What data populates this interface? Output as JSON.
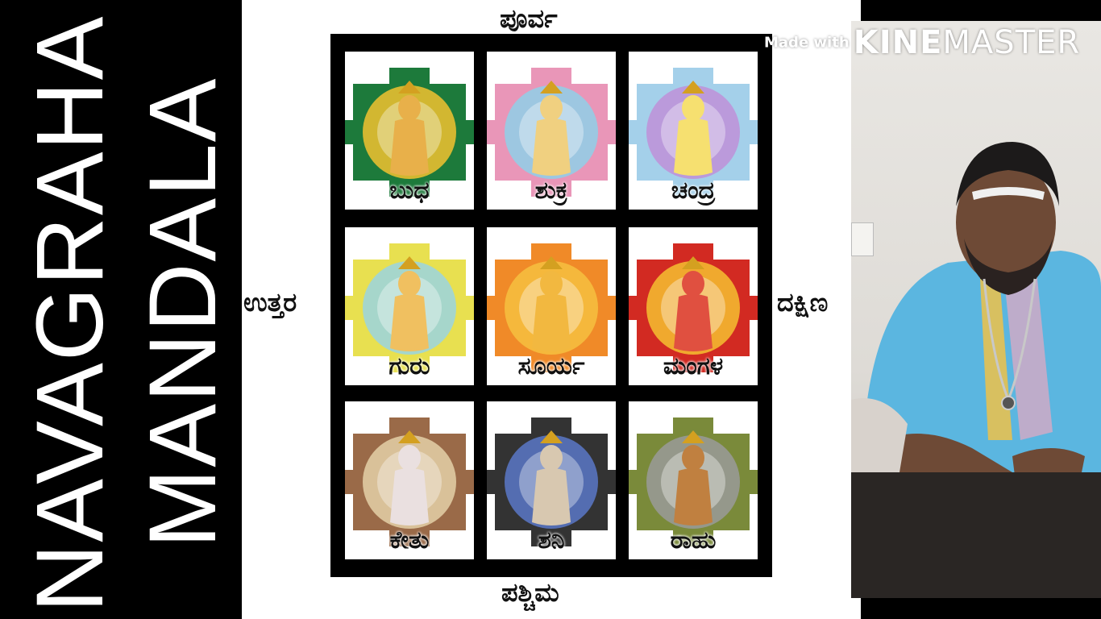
{
  "title": {
    "line1": "NAVAGRAHA",
    "line2": "MANDALA"
  },
  "directions": {
    "top": "ಪೂರ್ವ",
    "bottom": "ಪಶ್ಚಿಮ",
    "left": "ಉತ್ತರ",
    "right": "ದಕ್ಷಿಣ"
  },
  "grid": [
    {
      "label": "ಬುಧ",
      "color": "#1d7a3b",
      "accent": "#f2c230",
      "figure": "#e8b04a"
    },
    {
      "label": "ಶುಕ್ರ",
      "color": "#e996b8",
      "accent": "#8fd0e8",
      "figure": "#f0d080"
    },
    {
      "label": "ಚಂದ್ರ",
      "color": "#a4d0ea",
      "accent": "#c090d8",
      "figure": "#f6e070"
    },
    {
      "label": "ಗುರು",
      "color": "#e8e050",
      "accent": "#9ad4e0",
      "figure": "#f0c060"
    },
    {
      "label": "ಸೂರ್ಯ",
      "color": "#f08a28",
      "accent": "#f6c040",
      "figure": "#f2b840"
    },
    {
      "label": "ಮಂಗಳ",
      "color": "#d22a22",
      "accent": "#f6c030",
      "figure": "#e05040"
    },
    {
      "label": "ಕೇತು",
      "color": "#9a6a48",
      "accent": "#e4d0a8",
      "figure": "#eae0e0"
    },
    {
      "label": "ಶನಿ",
      "color": "#333333",
      "accent": "#5a78c8",
      "figure": "#d8c8b0"
    },
    {
      "label": "ರಾಹು",
      "color": "#7a8a3a",
      "accent": "#9a9a9a",
      "figure": "#c08040"
    }
  ],
  "watermark": {
    "made_with": "Made with",
    "kine": "KINE",
    "master": "MASTER"
  },
  "colors": {
    "background": "#000000",
    "panel": "#ffffff",
    "robe": "#5bb6e0"
  }
}
